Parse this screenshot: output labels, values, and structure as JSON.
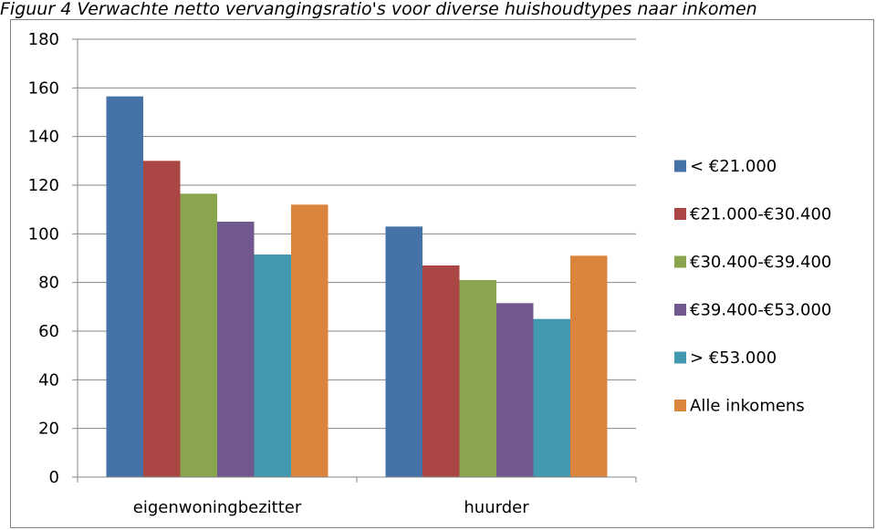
{
  "caption": "Figuur 4 Verwachte netto vervangingsratio's voor diverse huishoudtypes naar inkomen",
  "chart_data": {
    "type": "bar",
    "categories": [
      "eigenwoningbezitter",
      "huurder"
    ],
    "series": [
      {
        "name": "< €21.000",
        "color": "#4572A7",
        "values": [
          156.5,
          103
        ]
      },
      {
        "name": "€21.000-€30.400",
        "color": "#AA4643",
        "values": [
          130,
          87
        ]
      },
      {
        "name": "€30.400-€39.400",
        "color": "#89A54E",
        "values": [
          116.5,
          81
        ]
      },
      {
        "name": "€39.400-€53.000",
        "color": "#71588F",
        "values": [
          105,
          71.5
        ]
      },
      {
        "name": "> €53.000",
        "color": "#4198AF",
        "values": [
          91.5,
          65
        ]
      },
      {
        "name": "Alle inkomens",
        "color": "#DB843D",
        "values": [
          112,
          91
        ]
      }
    ],
    "ylim": [
      0,
      180
    ],
    "yticks": [
      "0",
      "20",
      "40",
      "60",
      "80",
      "100",
      "120",
      "140",
      "160",
      "180"
    ],
    "grid": true,
    "legend": "right"
  }
}
